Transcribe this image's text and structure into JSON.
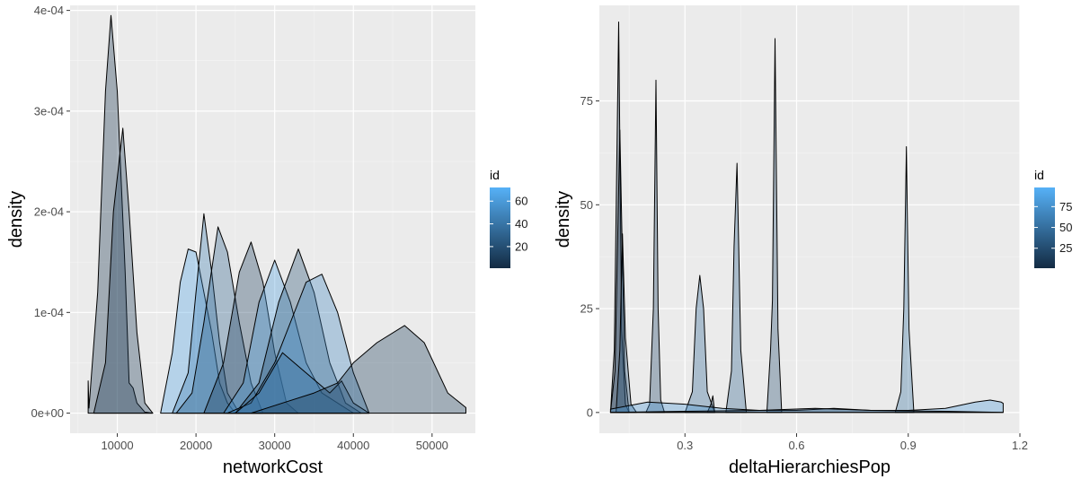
{
  "chart_data": [
    {
      "type": "area",
      "subtype": "density",
      "xlabel": "networkCost",
      "ylabel": "density",
      "xlim": [
        4000,
        55500
      ],
      "ylim": [
        -2e-05,
        0.000405
      ],
      "xticks": [
        10000,
        20000,
        30000,
        40000,
        50000
      ],
      "yticks": [
        0,
        0.0001,
        0.0002,
        0.0003,
        0.0004
      ],
      "yticklabels": [
        "0e+00",
        "1e-04",
        "2e-04",
        "3e-04",
        "4e-04"
      ],
      "grid": true,
      "legend": {
        "title": "id",
        "position": "right",
        "ticks": [
          20,
          40,
          60
        ],
        "range": [
          1,
          72
        ]
      },
      "series": [
        {
          "id": 5,
          "x": [
            6300,
            6400,
            7500,
            8500,
            9200,
            10000,
            11000,
            11500,
            12000,
            12500,
            13500,
            14500
          ],
          "y": [
            3.2e-05,
            5e-06,
            0.00012,
            0.00032,
            0.000395,
            0.00032,
            0.00014,
            3e-05,
            2.5e-05,
            1e-05,
            1e-06,
            0
          ]
        },
        {
          "id": 8,
          "x": [
            7000,
            8500,
            9500,
            10700,
            11500,
            12500,
            13500,
            14500
          ],
          "y": [
            0,
            5e-05,
            0.0002,
            0.000283,
            0.0002,
            8e-05,
            1e-05,
            0
          ]
        },
        {
          "id": 65,
          "x": [
            15500,
            17000,
            18000,
            19000,
            20000,
            21000,
            22000,
            23000,
            24000,
            25000
          ],
          "y": [
            0,
            6e-05,
            0.00013,
            0.000163,
            0.00016,
            0.00012,
            8e-05,
            3e-05,
            1e-05,
            0
          ]
        },
        {
          "id": 45,
          "x": [
            17000,
            19000,
            20000,
            21000,
            22000,
            23000,
            24000,
            25500
          ],
          "y": [
            0,
            4e-05,
            0.00012,
            0.000198,
            0.00014,
            7e-05,
            2e-05,
            0
          ]
        },
        {
          "id": 30,
          "x": [
            17500,
            19500,
            21000,
            22800,
            24000,
            25500,
            27000,
            28500
          ],
          "y": [
            0,
            2e-05,
            9e-05,
            0.000185,
            0.00016,
            9e-05,
            3e-05,
            0
          ]
        },
        {
          "id": 12,
          "x": [
            21000,
            23500,
            25500,
            27000,
            28500,
            30000,
            31500,
            33000
          ],
          "y": [
            0,
            5e-05,
            0.00014,
            0.00017,
            0.00013,
            6e-05,
            1e-05,
            0
          ]
        },
        {
          "id": 60,
          "x": [
            23500,
            26000,
            28000,
            30000,
            32000,
            34000,
            36000,
            38000,
            40000
          ],
          "y": [
            0,
            3e-05,
            0.00011,
            0.000152,
            0.00011,
            5e-05,
            2e-05,
            1e-05,
            0
          ]
        },
        {
          "id": 20,
          "x": [
            25000,
            28000,
            30500,
            33000,
            35000,
            37000,
            39000,
            41000
          ],
          "y": [
            0,
            3e-05,
            0.00011,
            0.000163,
            0.00012,
            5e-05,
            1e-05,
            0
          ]
        },
        {
          "id": 50,
          "x": [
            24000,
            27000,
            30000,
            32000,
            34000,
            36000,
            38000,
            40000,
            42000
          ],
          "y": [
            0,
            1e-05,
            5e-05,
            9e-05,
            0.00013,
            0.000138,
            0.0001,
            4e-05,
            0
          ]
        },
        {
          "id": 35,
          "x": [
            25000,
            28000,
            31000,
            34000,
            37000,
            38500,
            40000,
            42000
          ],
          "y": [
            0,
            2e-05,
            6e-05,
            4e-05,
            2e-05,
            3.2e-05,
            1e-05,
            0
          ]
        },
        {
          "id": 10,
          "x": [
            27000,
            31000,
            35000,
            38000,
            40000,
            43000,
            46500,
            49000,
            52000,
            54300,
            54300
          ],
          "y": [
            0,
            1e-05,
            2e-05,
            3e-05,
            5e-05,
            7e-05,
            8.7e-05,
            7e-05,
            2e-05,
            5.5e-06,
            0
          ]
        }
      ]
    },
    {
      "type": "area",
      "subtype": "density",
      "xlabel": "deltaHierarchiesPop",
      "ylabel": "density",
      "xlim": [
        0.07,
        1.2
      ],
      "ylim": [
        -5,
        98
      ],
      "xticks": [
        0.3,
        0.6,
        0.9,
        1.2
      ],
      "xticklabels": [
        "0.3",
        "0.6",
        "0.9",
        "1.2"
      ],
      "yticks": [
        0,
        25,
        50,
        75
      ],
      "grid": true,
      "legend": {
        "title": "id",
        "position": "right",
        "ticks": [
          25,
          50,
          75
        ],
        "range": [
          1,
          98
        ]
      },
      "series": [
        {
          "id": 5,
          "x": [
            0.1,
            0.11,
            0.122,
            0.13,
            0.14,
            0.15
          ],
          "y": [
            0,
            15,
            94,
            20,
            2,
            0
          ]
        },
        {
          "id": 8,
          "x": [
            0.1,
            0.112,
            0.125,
            0.138,
            0.15
          ],
          "y": [
            0,
            10,
            68,
            10,
            0
          ]
        },
        {
          "id": 30,
          "x": [
            0.115,
            0.125,
            0.132,
            0.14,
            0.155,
            0.17
          ],
          "y": [
            0,
            15,
            43,
            18,
            2,
            0
          ]
        },
        {
          "id": 20,
          "x": [
            0.195,
            0.205,
            0.215,
            0.222,
            0.228,
            0.235,
            0.245
          ],
          "y": [
            0,
            2,
            25,
            80,
            25,
            3,
            0
          ]
        },
        {
          "id": 45,
          "x": [
            0.3,
            0.32,
            0.33,
            0.34,
            0.35,
            0.36,
            0.38
          ],
          "y": [
            0,
            5,
            25,
            33,
            25,
            5,
            0
          ]
        },
        {
          "id": 12,
          "x": [
            0.36,
            0.37,
            0.375,
            0.38
          ],
          "y": [
            0,
            2,
            4,
            0
          ]
        },
        {
          "id": 40,
          "x": [
            0.41,
            0.425,
            0.432,
            0.44,
            0.45,
            0.465
          ],
          "y": [
            0,
            10,
            40,
            60,
            15,
            0
          ]
        },
        {
          "id": 25,
          "x": [
            0.52,
            0.53,
            0.535,
            0.542,
            0.55,
            0.56
          ],
          "y": [
            0,
            15,
            27,
            90,
            20,
            0
          ]
        },
        {
          "id": 50,
          "x": [
            0.865,
            0.88,
            0.888,
            0.895,
            0.902,
            0.915
          ],
          "y": [
            0,
            5,
            25,
            64,
            20,
            0
          ]
        },
        {
          "id": 80,
          "x": [
            0.1,
            0.2,
            0.3,
            0.4,
            0.5,
            0.6,
            0.7,
            0.8,
            0.9,
            1.0,
            1.08,
            1.12,
            1.15,
            1.155,
            1.155
          ],
          "y": [
            0.8,
            2.5,
            2.0,
            1.0,
            0.5,
            0.5,
            1.0,
            0.5,
            0.5,
            1.0,
            2.5,
            3.0,
            2.5,
            2.2,
            0
          ]
        },
        {
          "id": 10,
          "x": [
            0.1,
            0.3,
            0.5,
            0.65,
            0.8,
            1.0,
            1.155
          ],
          "y": [
            0,
            0.3,
            0.5,
            1.0,
            0.5,
            0.3,
            0
          ]
        }
      ]
    }
  ]
}
